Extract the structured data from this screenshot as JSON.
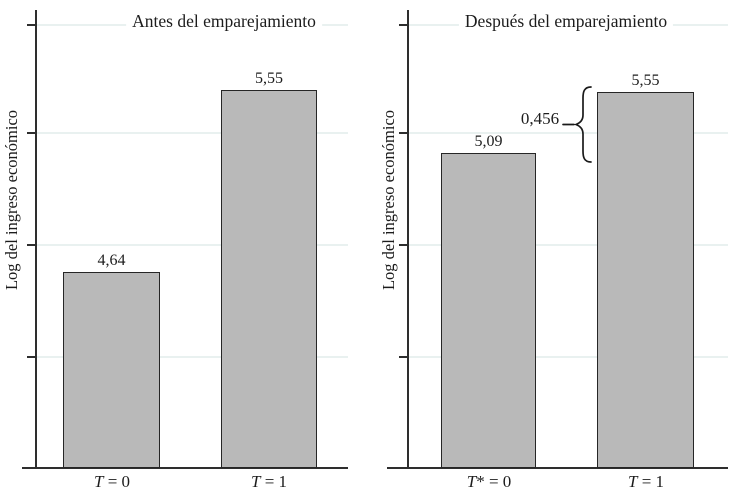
{
  "chart_data": [
    {
      "type": "bar",
      "title": "Antes del emparejamiento",
      "categories": [
        "T = 0",
        "T = 1"
      ],
      "cat_parts": [
        [
          "T",
          " = 0"
        ],
        [
          "T",
          " = 1"
        ]
      ],
      "values": [
        4.64,
        5.55
      ],
      "value_labels": [
        "4,64",
        "5,55"
      ],
      "xlabel": "",
      "ylabel": "Log del ingreso económico",
      "ylim": [
        3.66,
        5.95
      ],
      "yticks": "4 unlabeled ticks",
      "grid": "horizontal",
      "legend": "none"
    },
    {
      "type": "bar",
      "title": "Después del emparejamiento",
      "categories": [
        "T* = 0",
        "T = 1"
      ],
      "cat_parts": [
        [
          "T",
          "* = 0"
        ],
        [
          "T",
          " = 1"
        ]
      ],
      "values": [
        5.09,
        5.55
      ],
      "value_labels": [
        "5,09",
        "5,55"
      ],
      "xlabel": "",
      "ylabel": "Log del ingreso económico",
      "ylim": [
        2.71,
        6.17
      ],
      "yticks": "4 unlabeled ticks",
      "grid": "horizontal",
      "legend": "none",
      "annotation": {
        "label": "0,456",
        "meaning": "difference between T=1 and T*=0 bar heights, marked with curly brace"
      }
    }
  ],
  "style": {
    "bar_fill": "#b9b9b9",
    "bar_border": "#262626",
    "gridline": "#e9f1f0",
    "axis": "#2e2e2e",
    "text": "#1c1c1c",
    "background": "#ffffff"
  }
}
